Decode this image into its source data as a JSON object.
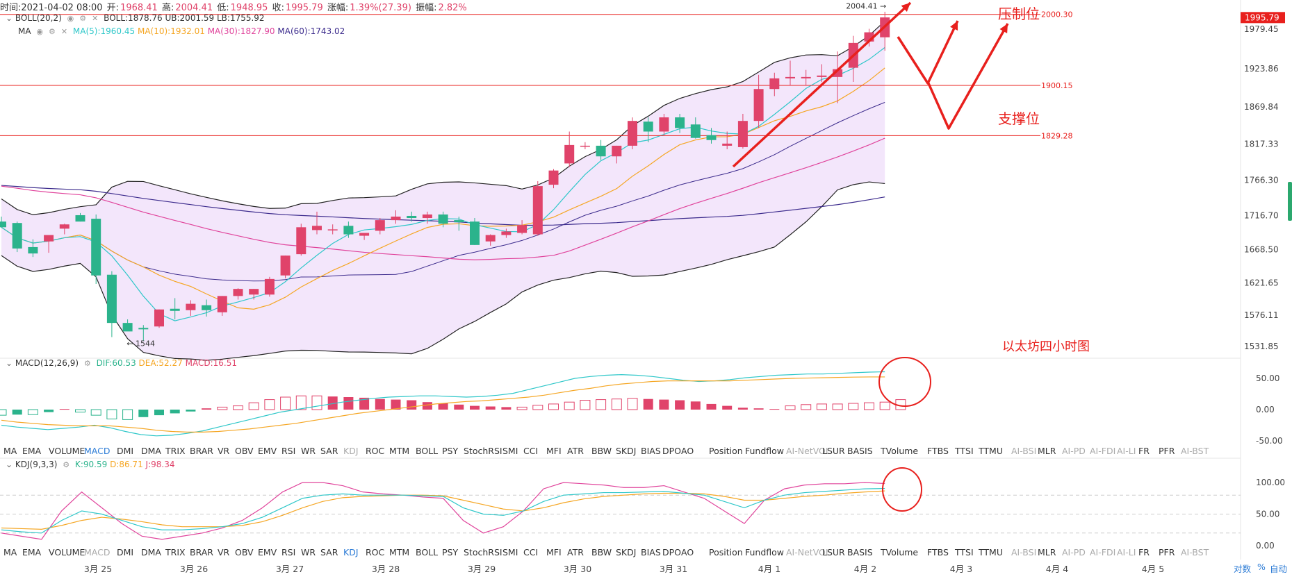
{
  "header": {
    "time_label": "时间:2021-04-02 08:00",
    "open_label": "开:",
    "open": "1968.41",
    "high_label": "高:",
    "high": "2004.41",
    "low_label": "低:",
    "low": "1948.95",
    "close_label": "收:",
    "close": "1995.79",
    "change_label": "涨幅:",
    "change": "1.39%(27.39)",
    "amp_label": "振幅:",
    "amp": "2.82%"
  },
  "boll_info": {
    "name": "BOLL(20,2)",
    "values": "BOLL:1878.76  UB:2001.59  LB:1755.92"
  },
  "ma_info": {
    "name": "MA",
    "ma5": "MA(5):1960.45",
    "ma10": "MA(10):1932.01",
    "ma30": "MA(30):1827.90",
    "ma60": "MA(60):1743.02"
  },
  "macd_info": {
    "name": "MACD(12,26,9)",
    "dif": "DIF:60.53",
    "dea": "DEA:52.27",
    "macd": "MACD:16.51"
  },
  "kdj_info": {
    "name": "KDJ(9,3,3)",
    "k": "K:90.59",
    "d": "D:86.71",
    "j": "J:98.34"
  },
  "colors": {
    "up": "#e0436a",
    "down": "#2bb38c",
    "ma5": "#2ec7c9",
    "ma10": "#f5a623",
    "ma30": "#e0439b",
    "ma60": "#3b2a8c",
    "boll": "#222222",
    "band": "#f3e6fb",
    "red": "#e8201d"
  },
  "indicator_tabs": [
    "MA",
    "EMA",
    "VOLUME",
    "MACD",
    "DMI",
    "DMA",
    "TRIX",
    "BRAR",
    "VR",
    "OBV",
    "EMV",
    "RSI",
    "WR",
    "SAR",
    "KDJ",
    "ROC",
    "MTM",
    "BOLL",
    "PSY",
    "StochRSI",
    "SMI",
    "CCI",
    "MFI",
    "ATR",
    "BBW",
    "SKDJ",
    "BIAS",
    "DPO",
    "AO",
    "Position",
    "Fundflow",
    "AI-NetVOL",
    "LSUR",
    "BASIS",
    "TVolume",
    "FTBS",
    "TTSI",
    "TTMU",
    "AI-BSI",
    "MLR",
    "AI-PD",
    "AI-FDI",
    "AI-LI",
    "FR",
    "PFR",
    "AI-BST"
  ],
  "x_labels": [
    "3月 25",
    "3月 26",
    "3月 27",
    "3月 28",
    "3月 29",
    "3月 30",
    "3月 31",
    "4月 1",
    "4月 2",
    "4月 3",
    "4月 4",
    "4月 5"
  ],
  "bottom_right": {
    "log": "对数",
    "pct": "%",
    "auto": "自动"
  },
  "annotations": {
    "resistance": "压制位",
    "support": "支撑位",
    "title": "以太坊四小时图",
    "high_marker": "2004.41 →",
    "low_marker": "← 1544",
    "last_price": "1995.79"
  },
  "chart_data": {
    "type": "candlestick",
    "main_y_ticks": [
      1979.45,
      1923.86,
      1869.84,
      1817.33,
      1766.3,
      1716.7,
      1668.5,
      1621.65,
      1576.11,
      1531.85
    ],
    "horizontal_lines": [
      2000.3,
      1900.15,
      1829.28
    ],
    "macd_y_ticks": [
      50.0,
      0.0,
      -50.0
    ],
    "kdj_y_ticks": [
      100.0,
      50.0,
      0.0
    ],
    "candles": [
      [
        1708,
        1715,
        1700,
        1700
      ],
      [
        1706,
        1708,
        1665,
        1670
      ],
      [
        1672,
        1683,
        1658,
        1663
      ],
      [
        1680,
        1688,
        1664,
        1689
      ],
      [
        1698,
        1705,
        1690,
        1704
      ],
      [
        1717,
        1720,
        1708,
        1708
      ],
      [
        1712,
        1718,
        1620,
        1632
      ],
      [
        1633,
        1638,
        1545,
        1565
      ],
      [
        1565,
        1570,
        1555,
        1553
      ],
      [
        1558,
        1562,
        1540,
        1556
      ],
      [
        1560,
        1584,
        1558,
        1584
      ],
      [
        1585,
        1600,
        1570,
        1582
      ],
      [
        1583,
        1597,
        1575,
        1592
      ],
      [
        1590,
        1598,
        1574,
        1583
      ],
      [
        1580,
        1603,
        1575,
        1603
      ],
      [
        1603,
        1614,
        1598,
        1613
      ],
      [
        1605,
        1613,
        1598,
        1613
      ],
      [
        1605,
        1630,
        1602,
        1627
      ],
      [
        1632,
        1660,
        1628,
        1660
      ],
      [
        1662,
        1705,
        1660,
        1700
      ],
      [
        1696,
        1722,
        1690,
        1702
      ],
      [
        1697,
        1704,
        1690,
        1697
      ],
      [
        1702,
        1708,
        1685,
        1690
      ],
      [
        1688,
        1692,
        1682,
        1692
      ],
      [
        1695,
        1713,
        1690,
        1710
      ],
      [
        1710,
        1724,
        1705,
        1715
      ],
      [
        1716,
        1722,
        1708,
        1713
      ],
      [
        1713,
        1722,
        1705,
        1718
      ],
      [
        1718,
        1722,
        1700,
        1705
      ],
      [
        1710,
        1715,
        1695,
        1707
      ],
      [
        1708,
        1713,
        1675,
        1675
      ],
      [
        1680,
        1690,
        1674,
        1689
      ],
      [
        1689,
        1698,
        1685,
        1694
      ],
      [
        1692,
        1710,
        1690,
        1703
      ],
      [
        1690,
        1765,
        1688,
        1758
      ],
      [
        1760,
        1782,
        1755,
        1780
      ],
      [
        1790,
        1835,
        1785,
        1816
      ],
      [
        1815,
        1820,
        1810,
        1815
      ],
      [
        1815,
        1823,
        1795,
        1800
      ],
      [
        1800,
        1815,
        1790,
        1815
      ],
      [
        1815,
        1855,
        1810,
        1850
      ],
      [
        1849,
        1855,
        1820,
        1835
      ],
      [
        1835,
        1860,
        1830,
        1855
      ],
      [
        1855,
        1860,
        1833,
        1840
      ],
      [
        1845,
        1855,
        1825,
        1826
      ],
      [
        1830,
        1840,
        1818,
        1823
      ],
      [
        1815,
        1835,
        1810,
        1818
      ],
      [
        1813,
        1860,
        1811,
        1850
      ],
      [
        1850,
        1915,
        1840,
        1895
      ],
      [
        1895,
        1918,
        1885,
        1910
      ],
      [
        1910,
        1935,
        1900,
        1912
      ],
      [
        1910,
        1922,
        1900,
        1912
      ],
      [
        1912,
        1930,
        1905,
        1914
      ],
      [
        1912,
        1948,
        1875,
        1923
      ],
      [
        1925,
        1970,
        1905,
        1960
      ],
      [
        1962,
        1980,
        1955,
        1975
      ],
      [
        1968,
        2004,
        1949,
        1996
      ]
    ],
    "macd_hist": [
      -9,
      -8,
      -8,
      -4,
      1,
      -4,
      -9,
      -15,
      -16,
      -12,
      -9,
      -6,
      -3,
      2,
      4,
      6,
      11,
      16,
      20,
      22,
      22,
      21,
      20,
      19,
      17,
      16,
      15,
      12,
      10,
      8,
      6,
      5,
      4,
      4,
      7,
      9,
      12,
      15,
      16,
      17,
      18,
      17,
      16,
      15,
      13,
      9,
      6,
      3,
      2,
      1,
      6,
      8,
      9,
      9,
      10,
      11,
      12,
      16
    ],
    "macd_dif": [
      -25,
      -28,
      -30,
      -32,
      -30,
      -28,
      -25,
      -29,
      -35,
      -40,
      -42,
      -41,
      -38,
      -34,
      -28,
      -22,
      -16,
      -10,
      -4,
      0,
      4,
      8,
      12,
      15,
      18,
      20,
      21,
      22,
      22,
      21,
      20,
      21,
      23,
      26,
      32,
      38,
      44,
      50,
      53,
      55,
      56,
      55,
      53,
      50,
      47,
      45,
      46,
      48,
      51,
      53,
      55,
      56,
      57,
      57,
      58,
      59,
      60,
      60.53
    ],
    "macd_dea": [
      -17,
      -20,
      -22,
      -24,
      -25,
      -26,
      -26,
      -26,
      -28,
      -30,
      -33,
      -35,
      -36,
      -36,
      -35,
      -33,
      -31,
      -28,
      -25,
      -22,
      -18,
      -14,
      -10,
      -6,
      -3,
      0,
      3,
      6,
      9,
      11,
      13,
      14,
      16,
      18,
      20,
      23,
      27,
      31,
      34,
      38,
      41,
      43,
      45,
      46,
      46,
      46,
      46,
      46,
      47,
      48,
      49,
      50,
      50.5,
      51,
      51.5,
      52,
      52.27,
      52.27
    ],
    "kdj_k": [
      25,
      22,
      20,
      40,
      55,
      50,
      40,
      30,
      25,
      25,
      27,
      30,
      35,
      45,
      60,
      75,
      80,
      82,
      80,
      80,
      80,
      79,
      78,
      60,
      50,
      48,
      55,
      70,
      80,
      82,
      84,
      84,
      85,
      86,
      83,
      80,
      70,
      60,
      72,
      80,
      84,
      86,
      88,
      90,
      90.59
    ],
    "kdj_d": [
      28,
      27,
      26,
      32,
      40,
      45,
      42,
      38,
      33,
      30,
      30,
      30,
      32,
      38,
      48,
      60,
      70,
      76,
      78,
      79,
      80,
      80,
      79,
      72,
      65,
      58,
      55,
      60,
      68,
      74,
      78,
      80,
      82,
      83,
      83,
      82,
      78,
      72,
      72,
      75,
      78,
      80,
      83,
      85,
      86.71
    ],
    "kdj_j": [
      20,
      15,
      10,
      55,
      85,
      60,
      35,
      15,
      10,
      15,
      20,
      28,
      40,
      60,
      85,
      100,
      100,
      95,
      85,
      82,
      80,
      77,
      75,
      40,
      20,
      30,
      55,
      90,
      100,
      98,
      96,
      92,
      92,
      95,
      85,
      75,
      55,
      35,
      72,
      90,
      96,
      98,
      98,
      100,
      98.34
    ]
  }
}
